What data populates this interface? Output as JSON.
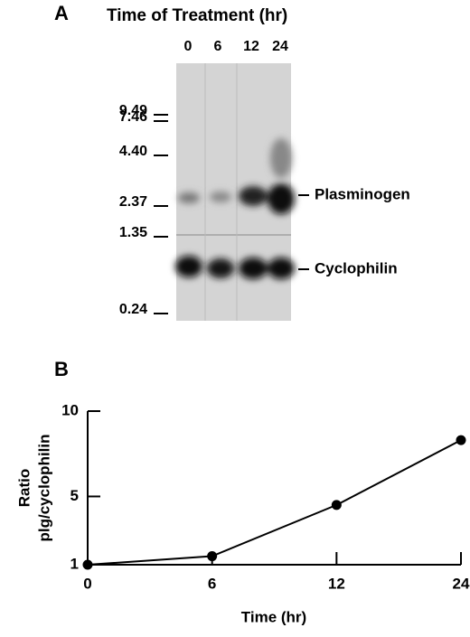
{
  "panel_a": {
    "label": "A",
    "title": "Time of Treatment (hr)",
    "lanes": [
      "0",
      "6",
      "12",
      "24"
    ],
    "markers": [
      "9.49",
      "7.46",
      "4.40",
      "2.37",
      "1.35",
      "0.24"
    ],
    "bands": [
      "Plasminogen",
      "Cyclophilin"
    ]
  },
  "chart_data": {
    "type": "line",
    "panel_label": "B",
    "xlabel": "Time (hr)",
    "ylabel": [
      "Ratio",
      "plg/cyclophilin"
    ],
    "categories": [
      "0",
      "6",
      "12",
      "24"
    ],
    "values": [
      1,
      1.5,
      4.5,
      8.3
    ],
    "color": "#000000",
    "ylim": [
      1,
      10
    ],
    "yticks": [
      1,
      5,
      10
    ]
  }
}
